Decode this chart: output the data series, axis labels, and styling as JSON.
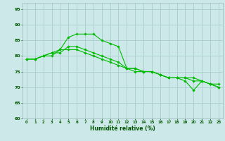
{
  "xlabel": "Humidité relative (%)",
  "bg_color": "#cce8e8",
  "grid_color": "#aacccc",
  "line_color": "#00bb00",
  "xlim": [
    -0.5,
    23.5
  ],
  "ylim": [
    60,
    97
  ],
  "yticks": [
    60,
    65,
    70,
    75,
    80,
    85,
    90,
    95
  ],
  "xticks": [
    0,
    1,
    2,
    3,
    4,
    5,
    6,
    7,
    8,
    9,
    10,
    11,
    12,
    13,
    14,
    15,
    16,
    17,
    18,
    19,
    20,
    21,
    22,
    23
  ],
  "series1_x": [
    0,
    1,
    2,
    3,
    4,
    5,
    6,
    7,
    8,
    9,
    10,
    11,
    12,
    13,
    14,
    15,
    16,
    17,
    18,
    19,
    20,
    21,
    22,
    23
  ],
  "series1_y": [
    79,
    79,
    80,
    80,
    82,
    86,
    87,
    87,
    87,
    85,
    84,
    83,
    76,
    76,
    75,
    75,
    74,
    73,
    73,
    72,
    69,
    72,
    71,
    71
  ],
  "series2_x": [
    0,
    1,
    2,
    3,
    4,
    5,
    6,
    7,
    8,
    9,
    10,
    11,
    12,
    13,
    14,
    15,
    16,
    17,
    18,
    19,
    20,
    21,
    22,
    23
  ],
  "series2_y": [
    79,
    79,
    80,
    81,
    81,
    83,
    83,
    82,
    81,
    80,
    79,
    78,
    76,
    75,
    75,
    75,
    74,
    73,
    73,
    73,
    72,
    72,
    71,
    70
  ],
  "series3_x": [
    0,
    1,
    2,
    3,
    4,
    5,
    6,
    7,
    8,
    9,
    10,
    11,
    12,
    13,
    14,
    15,
    16,
    17,
    18,
    19,
    20,
    21,
    22,
    23
  ],
  "series3_y": [
    79,
    79,
    80,
    81,
    82,
    82,
    82,
    81,
    80,
    79,
    78,
    77,
    76,
    76,
    75,
    75,
    74,
    73,
    73,
    73,
    73,
    72,
    71,
    70
  ]
}
